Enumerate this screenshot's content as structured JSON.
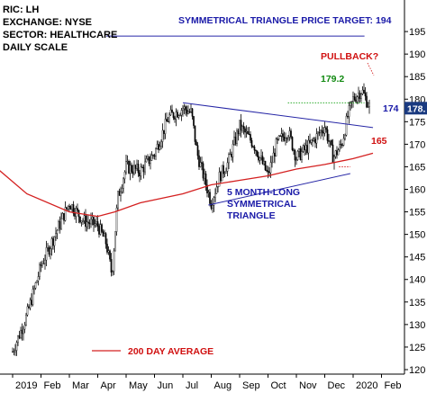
{
  "info": {
    "ric": "RIC: LH",
    "exchange": "EXCHANGE: NYSE",
    "sector": "SECTOR: HEALTHCARE",
    "scale": "DAILY SCALE"
  },
  "annotations": {
    "target": "SYMMETRICAL TRIANGLE PRICE TARGET: 194",
    "pullback": "PULLBACK?",
    "breakout_level": "179.2",
    "upper_level": "174",
    "lower_level": "165",
    "pattern_line1": "5 MONTH-LONG",
    "pattern_line2": "SYMMETRICAL",
    "pattern_line3": "TRIANGLE",
    "legend": "200 DAY AVERAGE",
    "last_price": "178.",
    "last_price_value": 178
  },
  "chart_data": {
    "type": "candlestick",
    "title": "",
    "xlabel": "",
    "ylabel": "",
    "ylim": [
      119,
      202
    ],
    "y_ticks": [
      120,
      125,
      130,
      135,
      140,
      145,
      150,
      155,
      160,
      165,
      170,
      175,
      180,
      185,
      190,
      195
    ],
    "x_ticks": [
      "2019",
      "Feb",
      "Mar",
      "Apr",
      "May",
      "Jun",
      "Jul",
      "Aug",
      "Sep",
      "Oct",
      "Nov",
      "Dec",
      "2020",
      "Feb"
    ],
    "price_path": [
      {
        "month": 0.0,
        "price": 124
      },
      {
        "month": 0.5,
        "price": 132
      },
      {
        "month": 1.0,
        "price": 143
      },
      {
        "month": 1.5,
        "price": 150
      },
      {
        "month": 2.0,
        "price": 157
      },
      {
        "month": 2.5,
        "price": 153
      },
      {
        "month": 3.0,
        "price": 152
      },
      {
        "month": 3.3,
        "price": 148
      },
      {
        "month": 3.5,
        "price": 141
      },
      {
        "month": 3.7,
        "price": 158
      },
      {
        "month": 4.0,
        "price": 165
      },
      {
        "month": 4.5,
        "price": 164
      },
      {
        "month": 5.0,
        "price": 168
      },
      {
        "month": 5.5,
        "price": 176
      },
      {
        "month": 6.0,
        "price": 178
      },
      {
        "month": 6.3,
        "price": 177
      },
      {
        "month": 6.5,
        "price": 168
      },
      {
        "month": 7.0,
        "price": 157
      },
      {
        "month": 7.3,
        "price": 163
      },
      {
        "month": 7.6,
        "price": 166
      },
      {
        "month": 8.0,
        "price": 174
      },
      {
        "month": 8.5,
        "price": 170
      },
      {
        "month": 9.0,
        "price": 163
      },
      {
        "month": 9.3,
        "price": 170
      },
      {
        "month": 9.7,
        "price": 173
      },
      {
        "month": 10.0,
        "price": 167
      },
      {
        "month": 10.5,
        "price": 170
      },
      {
        "month": 11.0,
        "price": 174
      },
      {
        "month": 11.3,
        "price": 167
      },
      {
        "month": 11.6,
        "price": 170
      },
      {
        "month": 11.8,
        "price": 176
      },
      {
        "month": 12.0,
        "price": 180
      },
      {
        "month": 12.3,
        "price": 182
      },
      {
        "month": 12.6,
        "price": 178
      }
    ],
    "moving_average_200": [
      {
        "month": -0.8,
        "price": 166
      },
      {
        "month": 0.5,
        "price": 159
      },
      {
        "month": 2.0,
        "price": 155
      },
      {
        "month": 3.0,
        "price": 154
      },
      {
        "month": 3.6,
        "price": 155
      },
      {
        "month": 4.5,
        "price": 157
      },
      {
        "month": 6.0,
        "price": 159
      },
      {
        "month": 7.0,
        "price": 161
      },
      {
        "month": 8.0,
        "price": 162
      },
      {
        "month": 9.0,
        "price": 163
      },
      {
        "month": 10.0,
        "price": 164.5
      },
      {
        "month": 11.0,
        "price": 165.5
      },
      {
        "month": 12.0,
        "price": 166.8
      },
      {
        "month": 12.7,
        "price": 168
      }
    ],
    "trendlines": {
      "upper": [
        {
          "month": 6.0,
          "price": 179.2
        },
        {
          "month": 12.7,
          "price": 173.7
        }
      ],
      "lower": [
        {
          "month": 6.9,
          "price": 156.5
        },
        {
          "month": 11.9,
          "price": 163.5
        }
      ],
      "breakout_level": [
        {
          "month": 9.7,
          "price": 179.2
        },
        {
          "month": 12.4,
          "price": 179.2
        }
      ],
      "target": [
        {
          "month": 3.3,
          "price": 194
        },
        {
          "month": 12.4,
          "price": 194
        }
      ],
      "ma_marker": [
        {
          "month": 11.5,
          "price": 165
        },
        {
          "month": 11.9,
          "price": 165
        }
      ]
    },
    "legend": [
      {
        "name": "200 DAY AVERAGE",
        "color": "#d42020"
      }
    ],
    "colors": {
      "candles": "#000000",
      "trendline": "#2626a6",
      "ma": "#d42020",
      "breakout": "#12a012",
      "price_tag": "#1a3a80"
    }
  }
}
